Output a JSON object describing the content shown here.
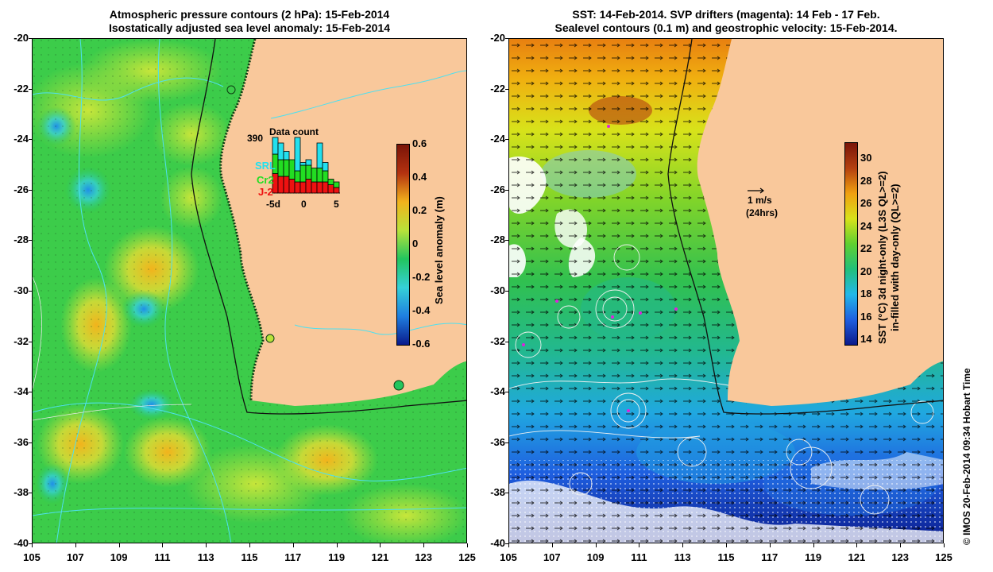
{
  "left_panel": {
    "title_line1": "Atmospheric pressure contours (2 hPa): 15-Feb-2014",
    "title_line2": "Isostatically adjusted sea level anomaly: 15-Feb-2014",
    "colorbar_label": "Sea level anomaly (m)",
    "colorbar_ticks": [
      "0.6",
      "0.4",
      "0.2",
      "0",
      "-0.2",
      "-0.4",
      "-0.6"
    ],
    "inset": {
      "title": "Data count",
      "max_label": "390",
      "legend": [
        {
          "label": "SRL",
          "color": "#22e0ee"
        },
        {
          "label": "Cr2",
          "color": "#22dd22"
        },
        {
          "label": "J-2",
          "color": "#ee1111"
        }
      ],
      "x_ticks": [
        "-5d",
        "0",
        "5"
      ],
      "bars": [
        {
          "j2": 0.35,
          "cr2": 0.35,
          "srl": 0.3
        },
        {
          "j2": 0.3,
          "cr2": 0.3,
          "srl": 0.3
        },
        {
          "j2": 0.3,
          "cr2": 0.3,
          "srl": 0.15
        },
        {
          "j2": 0.25,
          "cr2": 0.35,
          "srl": 0.0
        },
        {
          "j2": 0.2,
          "cr2": 0.2,
          "srl": 0.6
        },
        {
          "j2": 0.2,
          "cr2": 0.3,
          "srl": 0.05
        },
        {
          "j2": 0.25,
          "cr2": 0.25,
          "srl": 0.1
        },
        {
          "j2": 0.2,
          "cr2": 0.25,
          "srl": 0.0
        },
        {
          "j2": 0.2,
          "cr2": 0.25,
          "srl": 0.45
        },
        {
          "j2": 0.2,
          "cr2": 0.2,
          "srl": 0.15
        },
        {
          "j2": 0.15,
          "cr2": 0.1,
          "srl": 0.0
        },
        {
          "j2": 0.1,
          "cr2": 0.1,
          "srl": 0.0
        }
      ]
    }
  },
  "right_panel": {
    "title_line1": "SST: 14-Feb-2014. SVP drifters (magenta): 14 Feb - 17 Feb.",
    "title_line2": "Sealevel contours (0.1 m) and geostrophic velocity: 15-Feb-2014.",
    "colorbar_label_line1": "SST (°C) 3d night-only (L3S QL>=2)",
    "colorbar_label_line2": "in-filled with day-only (QL>=2)",
    "colorbar_ticks": [
      "30",
      "28",
      "26",
      "24",
      "22",
      "20",
      "18",
      "16",
      "14"
    ],
    "velocity_scale_label": "1 m/s",
    "velocity_scale_sublabel": "(24hrs)"
  },
  "y_axis_labels": [
    "-20",
    "-22",
    "-24",
    "-26",
    "-28",
    "-30",
    "-32",
    "-34",
    "-36",
    "-38",
    "-40"
  ],
  "x_axis_labels": [
    "105",
    "107",
    "109",
    "111",
    "113",
    "115",
    "117",
    "119",
    "121",
    "123",
    "125"
  ],
  "credit": "© IMOS 20-Feb-2014 09:34 Hobart Time",
  "colors": {
    "land": "#f9c89b",
    "sla_colormap": [
      "#0a1a8c",
      "#1f7fe0",
      "#35d0d8",
      "#22c55e",
      "#b8e23a",
      "#f2b31c",
      "#b43210",
      "#7a1408"
    ],
    "sst_colormap": [
      "#0a1a8c",
      "#1f5fe0",
      "#22b8e8",
      "#22c07a",
      "#60d030",
      "#d8e21a",
      "#f0a010",
      "#b44010"
    ]
  }
}
